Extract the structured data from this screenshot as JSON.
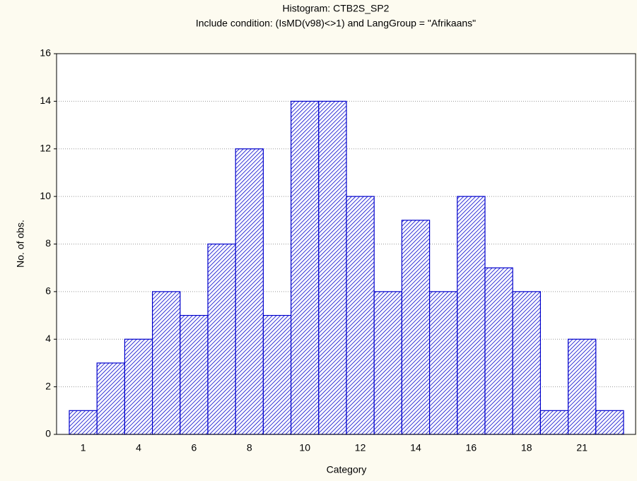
{
  "chart_data": {
    "type": "bar",
    "title": "Histogram: CTB2S_SP2",
    "subtitle": "Include condition: (IsMD(v98)<>1)  and LangGroup = \"Afrikaans\"",
    "x_label": "Category",
    "y_label": "No. of obs.",
    "categories": [
      "1",
      null,
      "4",
      null,
      "6",
      null,
      "8",
      null,
      "10",
      null,
      "12",
      null,
      "14",
      null,
      "16",
      null,
      "18",
      null,
      "21",
      null
    ],
    "values": [
      1,
      3,
      4,
      6,
      5,
      8,
      12,
      5,
      14,
      14,
      10,
      6,
      9,
      6,
      10,
      7,
      6,
      1,
      4,
      1
    ],
    "color": "#0000cc",
    "ylim": [
      0,
      16
    ],
    "yticks": [
      0,
      2,
      4,
      6,
      8,
      10,
      12,
      14,
      16
    ],
    "grid": true
  }
}
